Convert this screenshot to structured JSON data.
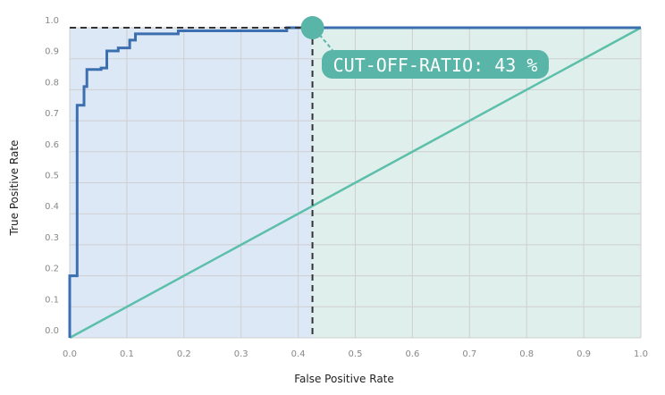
{
  "chart_data": {
    "type": "line",
    "title": "",
    "xlabel": "False Positive Rate",
    "ylabel": "True Positive Rate",
    "xlim": [
      0,
      1
    ],
    "ylim": [
      0,
      1
    ],
    "grid": true,
    "x_ticks": [
      "0.0",
      "0.1",
      "0.2",
      "0.3",
      "0.4",
      "0.5",
      "0.6",
      "0.7",
      "0.8",
      "0.9",
      "1.0"
    ],
    "y_ticks": [
      "0.0",
      "0.1",
      "0.2",
      "0.3",
      "0.4",
      "0.5",
      "0.6",
      "0.7",
      "0.8",
      "0.9",
      "1.0"
    ],
    "series": [
      {
        "color": "#3c6fb0",
        "x": [
          0.0,
          0.0,
          0.005,
          0.013,
          0.013,
          0.015,
          0.015,
          0.025,
          0.025,
          0.03,
          0.03,
          0.055,
          0.055,
          0.065,
          0.065,
          0.085,
          0.085,
          0.105,
          0.105,
          0.115,
          0.115,
          0.19,
          0.19,
          0.38,
          0.38,
          0.425,
          1.0
        ],
        "y": [
          0.0,
          0.2,
          0.2,
          0.2,
          0.75,
          0.75,
          0.75,
          0.75,
          0.81,
          0.81,
          0.865,
          0.865,
          0.87,
          0.87,
          0.925,
          0.925,
          0.935,
          0.935,
          0.96,
          0.96,
          0.98,
          0.98,
          0.99,
          0.99,
          1.0,
          1.0,
          1.0
        ]
      },
      {
        "color": "#5bbfaa",
        "x": [
          0,
          1
        ],
        "y": [
          0,
          1
        ]
      }
    ],
    "cutoff": {
      "fpr": 0.425,
      "tpr": 1.0,
      "label": "CUT-OFF-RATIO: 43 %"
    },
    "colors": {
      "left_region": "#dde8f7",
      "right_region": "#dfefec",
      "grid": "#cfcfcf",
      "roc": "#3c6fb0",
      "diagonal": "#5bbfaa",
      "marker": "#58b5a8",
      "dashed": "#333333"
    }
  }
}
